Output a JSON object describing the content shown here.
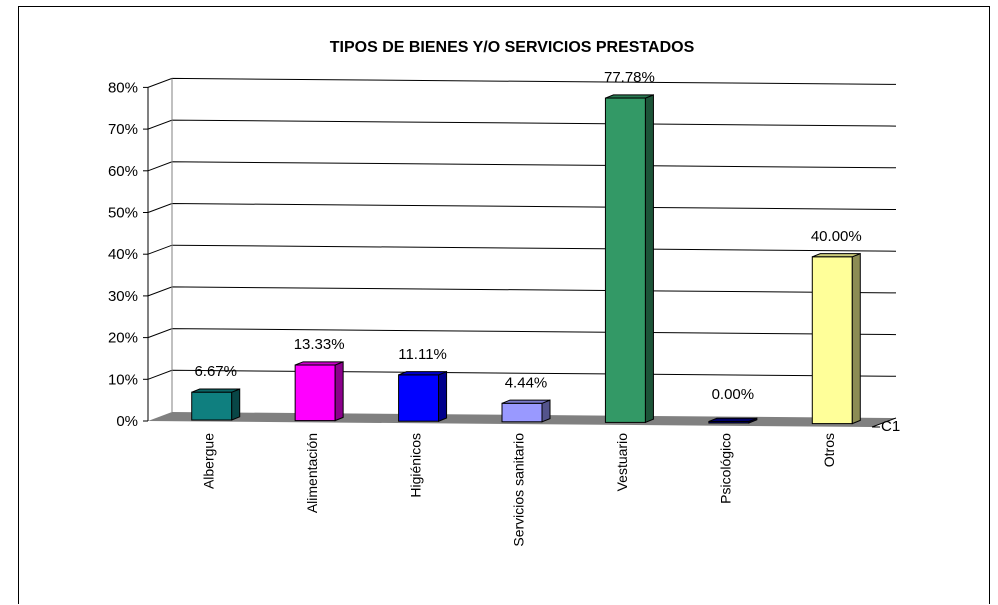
{
  "chart_data": {
    "type": "bar",
    "title": "TIPOS DE BIENES Y/O SERVICIOS PRESTADOS",
    "categories": [
      "Albergue",
      "Alimentación",
      "Higiénicos",
      "Servicios sanitario",
      "Vestuario",
      "Psicológico",
      "Otros"
    ],
    "series": [
      {
        "name": "C1",
        "values": [
          6.67,
          13.33,
          11.11,
          4.44,
          77.78,
          0.0,
          40.0
        ],
        "labels": [
          "6.67%",
          "13.33%",
          "11.11%",
          "4.44%",
          "77.78%",
          "0.00%",
          "40.00%"
        ],
        "colors": [
          "#0f7f7f",
          "#ff00ff",
          "#0000ff",
          "#9999ff",
          "#339966",
          "#000080",
          "#ffff99"
        ]
      }
    ],
    "y_ticks": [
      "0%",
      "10%",
      "20%",
      "30%",
      "40%",
      "50%",
      "60%",
      "70%",
      "80%"
    ],
    "ylim": [
      0,
      80
    ],
    "grid": true,
    "style": "3d-column"
  }
}
